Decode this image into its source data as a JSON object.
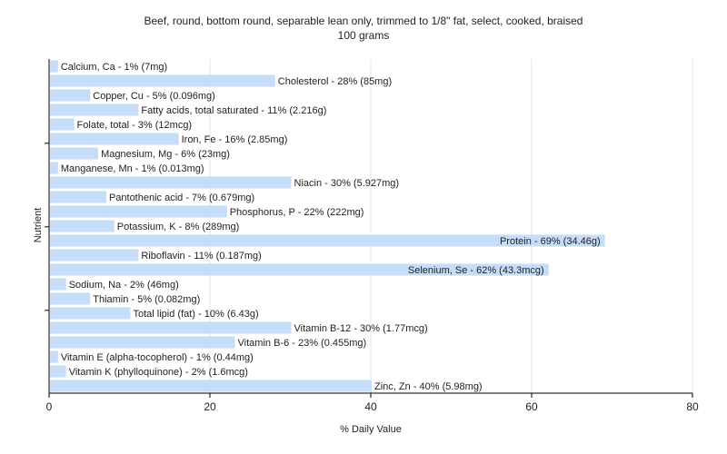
{
  "chart_data": {
    "type": "bar",
    "orientation": "horizontal",
    "title": "Beef, round, bottom round, separable lean only, trimmed to 1/8\" fat, select, cooked, braised",
    "subtitle": "100 grams",
    "xlabel": "% Daily Value",
    "ylabel": "Nutrient",
    "xlim": [
      0,
      80
    ],
    "xticks": [
      0,
      20,
      40,
      60,
      80
    ],
    "grid": true,
    "bar_color": "#c6dcf7",
    "categories": [
      "Calcium, Ca - 1% (7mg)",
      "Cholesterol - 28% (85mg)",
      "Copper, Cu - 5% (0.096mg)",
      "Fatty acids, total saturated - 11% (2.216g)",
      "Folate, total - 3% (12mcg)",
      "Iron, Fe - 16% (2.85mg)",
      "Magnesium, Mg - 6% (23mg)",
      "Manganese, Mn - 1% (0.013mg)",
      "Niacin - 30% (5.927mg)",
      "Pantothenic acid - 7% (0.679mg)",
      "Phosphorus, P - 22% (222mg)",
      "Potassium, K - 8% (289mg)",
      "Protein - 69% (34.46g)",
      "Riboflavin - 11% (0.187mg)",
      "Selenium, Se - 62% (43.3mcg)",
      "Sodium, Na - 2% (46mg)",
      "Thiamin - 5% (0.082mg)",
      "Total lipid (fat) - 10% (6.43g)",
      "Vitamin B-12 - 30% (1.77mcg)",
      "Vitamin B-6 - 23% (0.455mg)",
      "Vitamin E (alpha-tocopherol) - 1% (0.44mg)",
      "Vitamin K (phylloquinone) - 2% (1.6mcg)",
      "Zinc, Zn - 40% (5.98mg)"
    ],
    "values": [
      1,
      28,
      5,
      11,
      3,
      16,
      6,
      1,
      30,
      7,
      22,
      8,
      69,
      11,
      62,
      2,
      5,
      10,
      30,
      23,
      1,
      2,
      40
    ]
  }
}
